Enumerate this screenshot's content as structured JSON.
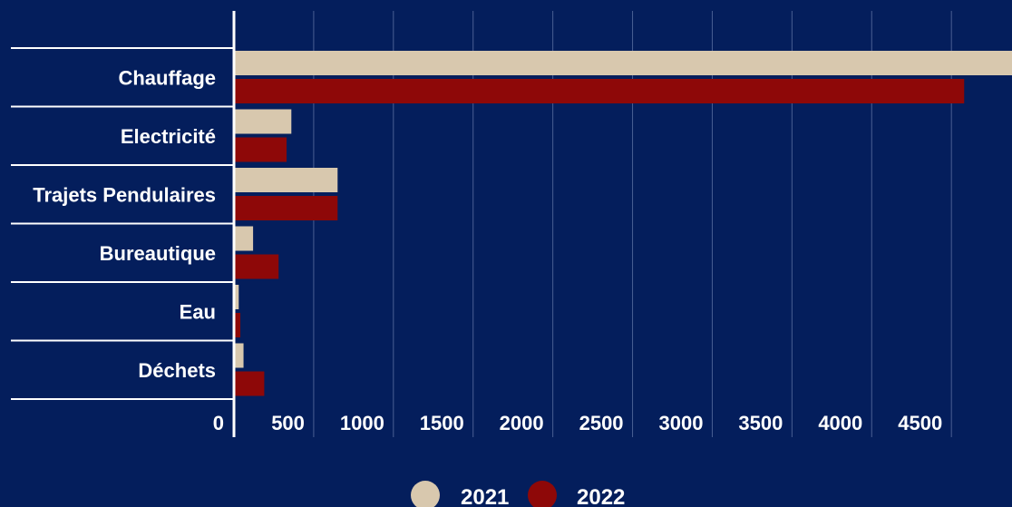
{
  "chart_data": {
    "type": "bar",
    "orientation": "horizontal",
    "categories": [
      "Chauffage",
      "Electricité",
      "Trajets Pendulaires",
      "Bureautique",
      "Eau",
      "Déchets"
    ],
    "series": [
      {
        "name": "2021",
        "color": "#d8c8ae",
        "values": [
          4880,
          360,
          650,
          120,
          30,
          60
        ]
      },
      {
        "name": "2022",
        "color": "#8e0808",
        "values": [
          4580,
          330,
          650,
          280,
          40,
          190
        ]
      }
    ],
    "xticks": [
      0,
      500,
      1000,
      1500,
      2000,
      2500,
      3000,
      3500,
      4000,
      4500
    ],
    "xlim": [
      0,
      4880
    ],
    "grid": true,
    "legend_position": "bottom-center",
    "background_color": "#041e5c",
    "text_color": "#ffffff"
  }
}
